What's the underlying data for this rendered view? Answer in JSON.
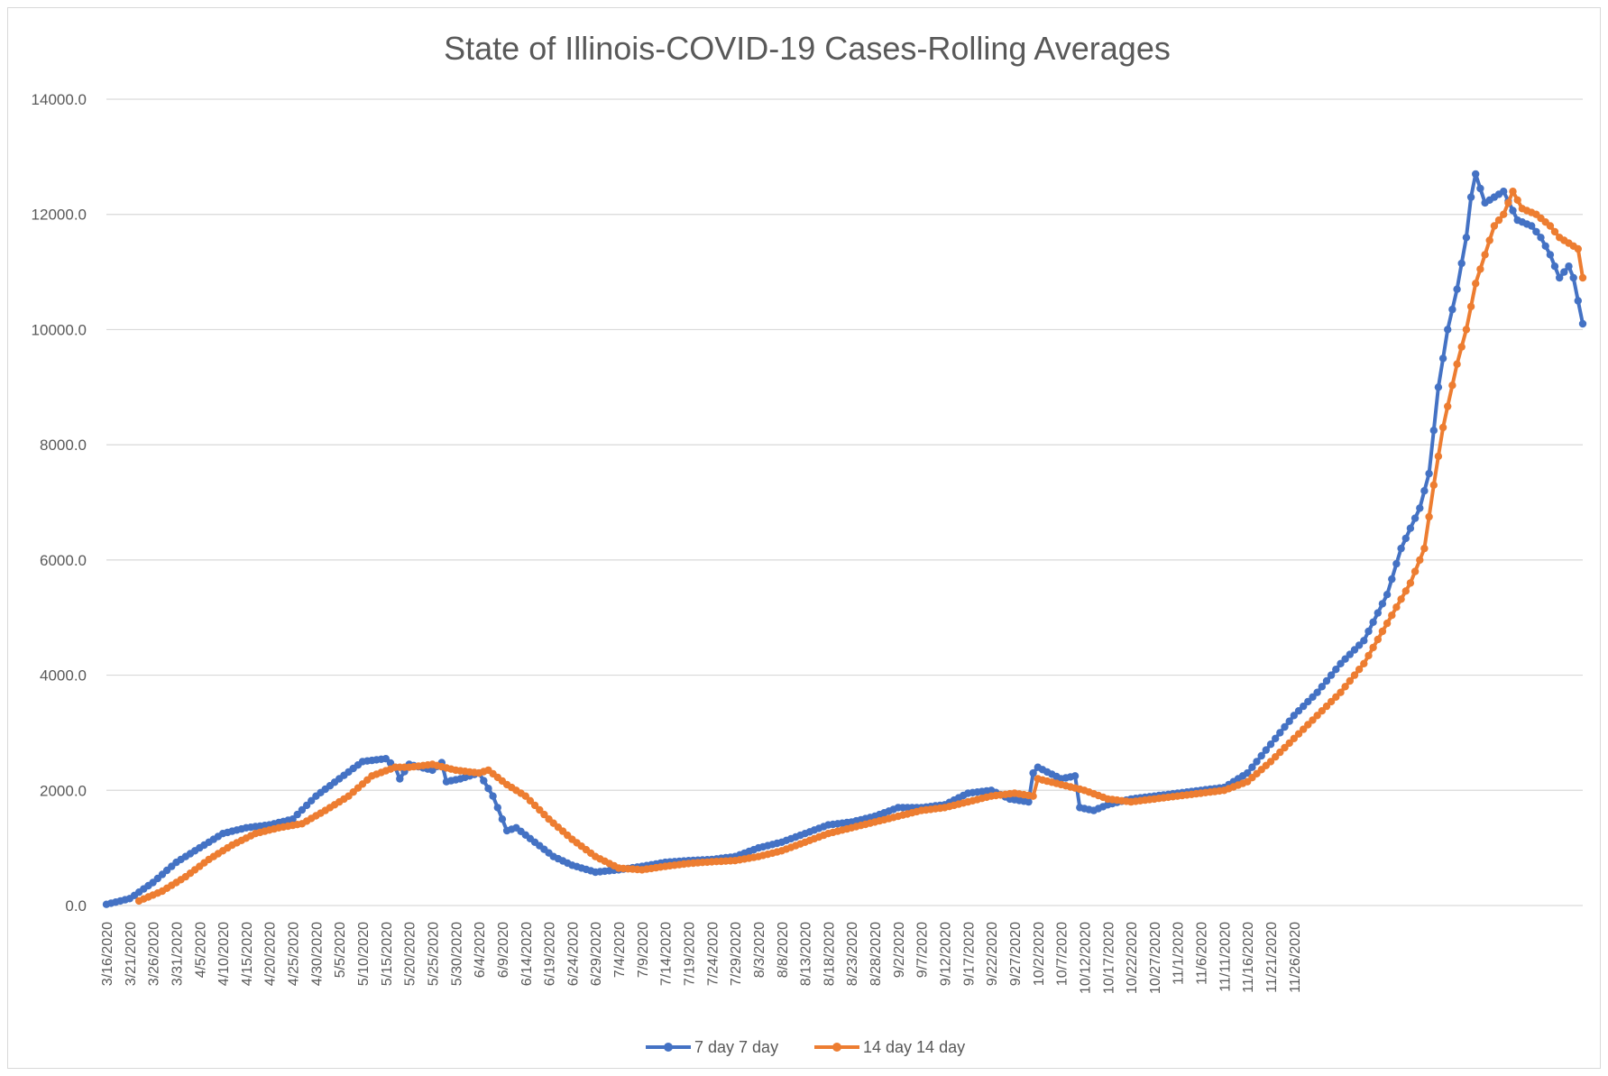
{
  "chart_data": {
    "type": "line",
    "title": "State of Illinois-COVID-19 Cases-Rolling Averages",
    "xlabel": "",
    "ylabel": "",
    "ylim": [
      0,
      14000
    ],
    "y_ticks": [
      "0.0",
      "2000.0",
      "4000.0",
      "6000.0",
      "8000.0",
      "10000.0",
      "12000.0",
      "14000.0"
    ],
    "x_tick_labels": [
      "3/16/2020",
      "3/21/2020",
      "3/26/2020",
      "3/31/2020",
      "4/5/2020",
      "4/10/2020",
      "4/15/2020",
      "4/20/2020",
      "4/25/2020",
      "4/30/2020",
      "5/5/2020",
      "5/10/2020",
      "5/15/2020",
      "5/20/2020",
      "5/25/2020",
      "5/30/2020",
      "6/4/2020",
      "6/9/2020",
      "6/14/2020",
      "6/19/2020",
      "6/24/2020",
      "6/29/2020",
      "7/4/2020",
      "7/9/2020",
      "7/14/2020",
      "7/19/2020",
      "7/24/2020",
      "7/29/2020",
      "8/3/2020",
      "8/8/2020",
      "8/13/2020",
      "8/18/2020",
      "8/23/2020",
      "8/28/2020",
      "9/2/2020",
      "9/7/2020",
      "9/12/2020",
      "9/17/2020",
      "9/22/2020",
      "9/27/2020",
      "10/2/2020",
      "10/7/2020",
      "10/12/2020",
      "10/17/2020",
      "10/22/2020",
      "10/27/2020",
      "11/1/2020",
      "11/6/2020",
      "11/11/2020",
      "11/16/2020",
      "11/21/2020",
      "11/26/2020"
    ],
    "grid": true,
    "legend_position": "bottom",
    "series": [
      {
        "name": "7 day  7 day",
        "color": "#4472C4",
        "start_day": 0,
        "points": [
          [
            0,
            20
          ],
          [
            5,
            120
          ],
          [
            10,
            400
          ],
          [
            15,
            750
          ],
          [
            20,
            1000
          ],
          [
            25,
            1250
          ],
          [
            30,
            1350
          ],
          [
            35,
            1400
          ],
          [
            40,
            1500
          ],
          [
            45,
            1900
          ],
          [
            50,
            2200
          ],
          [
            55,
            2500
          ],
          [
            60,
            2550
          ],
          [
            62,
            2400
          ],
          [
            63,
            2200
          ],
          [
            65,
            2450
          ],
          [
            70,
            2350
          ],
          [
            72,
            2480
          ],
          [
            73,
            2150
          ],
          [
            76,
            2200
          ],
          [
            80,
            2300
          ],
          [
            83,
            1900
          ],
          [
            86,
            1300
          ],
          [
            88,
            1350
          ],
          [
            92,
            1100
          ],
          [
            96,
            850
          ],
          [
            100,
            700
          ],
          [
            105,
            580
          ],
          [
            110,
            620
          ],
          [
            115,
            680
          ],
          [
            120,
            750
          ],
          [
            125,
            780
          ],
          [
            130,
            800
          ],
          [
            135,
            850
          ],
          [
            140,
            1000
          ],
          [
            145,
            1100
          ],
          [
            150,
            1250
          ],
          [
            155,
            1400
          ],
          [
            160,
            1450
          ],
          [
            165,
            1550
          ],
          [
            170,
            1700
          ],
          [
            175,
            1700
          ],
          [
            180,
            1750
          ],
          [
            185,
            1950
          ],
          [
            190,
            2000
          ],
          [
            194,
            1850
          ],
          [
            198,
            1800
          ],
          [
            199,
            2300
          ],
          [
            200,
            2400
          ],
          [
            205,
            2200
          ],
          [
            208,
            2250
          ],
          [
            209,
            1700
          ],
          [
            212,
            1650
          ],
          [
            215,
            1750
          ],
          [
            220,
            1850
          ],
          [
            225,
            1900
          ],
          [
            230,
            1950
          ],
          [
            235,
            2000
          ],
          [
            240,
            2050
          ],
          [
            245,
            2300
          ],
          [
            250,
            2800
          ],
          [
            255,
            3300
          ],
          [
            260,
            3700
          ],
          [
            265,
            4200
          ],
          [
            270,
            4600
          ],
          [
            275,
            5400
          ],
          [
            278,
            6200
          ],
          [
            282,
            6900
          ],
          [
            284,
            7500
          ],
          [
            286,
            9000
          ],
          [
            288,
            10000
          ],
          [
            290,
            10700
          ],
          [
            292,
            11600
          ],
          [
            293,
            12300
          ],
          [
            294,
            12700
          ],
          [
            296,
            12200
          ],
          [
            298,
            12300
          ],
          [
            300,
            12400
          ],
          [
            303,
            11900
          ],
          [
            306,
            11800
          ],
          [
            308,
            11600
          ],
          [
            310,
            11300
          ],
          [
            312,
            10900
          ],
          [
            314,
            11100
          ],
          [
            315,
            10900
          ],
          [
            317,
            10100
          ]
        ]
      },
      {
        "name": "14 day 14 day",
        "color": "#ED7D31",
        "start_day": 7,
        "points": [
          [
            7,
            80
          ],
          [
            12,
            250
          ],
          [
            17,
            500
          ],
          [
            22,
            800
          ],
          [
            27,
            1050
          ],
          [
            32,
            1250
          ],
          [
            37,
            1350
          ],
          [
            42,
            1420
          ],
          [
            47,
            1650
          ],
          [
            52,
            1900
          ],
          [
            57,
            2250
          ],
          [
            62,
            2400
          ],
          [
            65,
            2400
          ],
          [
            70,
            2450
          ],
          [
            75,
            2350
          ],
          [
            80,
            2300
          ],
          [
            82,
            2350
          ],
          [
            86,
            2100
          ],
          [
            90,
            1900
          ],
          [
            95,
            1500
          ],
          [
            100,
            1150
          ],
          [
            105,
            850
          ],
          [
            110,
            650
          ],
          [
            115,
            620
          ],
          [
            120,
            680
          ],
          [
            125,
            730
          ],
          [
            130,
            760
          ],
          [
            135,
            780
          ],
          [
            140,
            850
          ],
          [
            145,
            950
          ],
          [
            150,
            1100
          ],
          [
            155,
            1250
          ],
          [
            160,
            1350
          ],
          [
            165,
            1450
          ],
          [
            170,
            1550
          ],
          [
            175,
            1650
          ],
          [
            180,
            1700
          ],
          [
            185,
            1800
          ],
          [
            190,
            1900
          ],
          [
            195,
            1950
          ],
          [
            199,
            1900
          ],
          [
            200,
            2200
          ],
          [
            205,
            2100
          ],
          [
            210,
            2000
          ],
          [
            215,
            1850
          ],
          [
            220,
            1800
          ],
          [
            225,
            1850
          ],
          [
            230,
            1900
          ],
          [
            235,
            1950
          ],
          [
            240,
            2000
          ],
          [
            245,
            2150
          ],
          [
            250,
            2500
          ],
          [
            255,
            2900
          ],
          [
            260,
            3300
          ],
          [
            265,
            3700
          ],
          [
            270,
            4200
          ],
          [
            275,
            4900
          ],
          [
            280,
            5600
          ],
          [
            283,
            6200
          ],
          [
            285,
            7300
          ],
          [
            287,
            8300
          ],
          [
            290,
            9400
          ],
          [
            292,
            10000
          ],
          [
            294,
            10800
          ],
          [
            296,
            11300
          ],
          [
            298,
            11800
          ],
          [
            300,
            12000
          ],
          [
            302,
            12400
          ],
          [
            304,
            12100
          ],
          [
            307,
            12000
          ],
          [
            310,
            11800
          ],
          [
            312,
            11600
          ],
          [
            314,
            11500
          ],
          [
            316,
            11400
          ],
          [
            317,
            10900
          ]
        ]
      }
    ]
  }
}
